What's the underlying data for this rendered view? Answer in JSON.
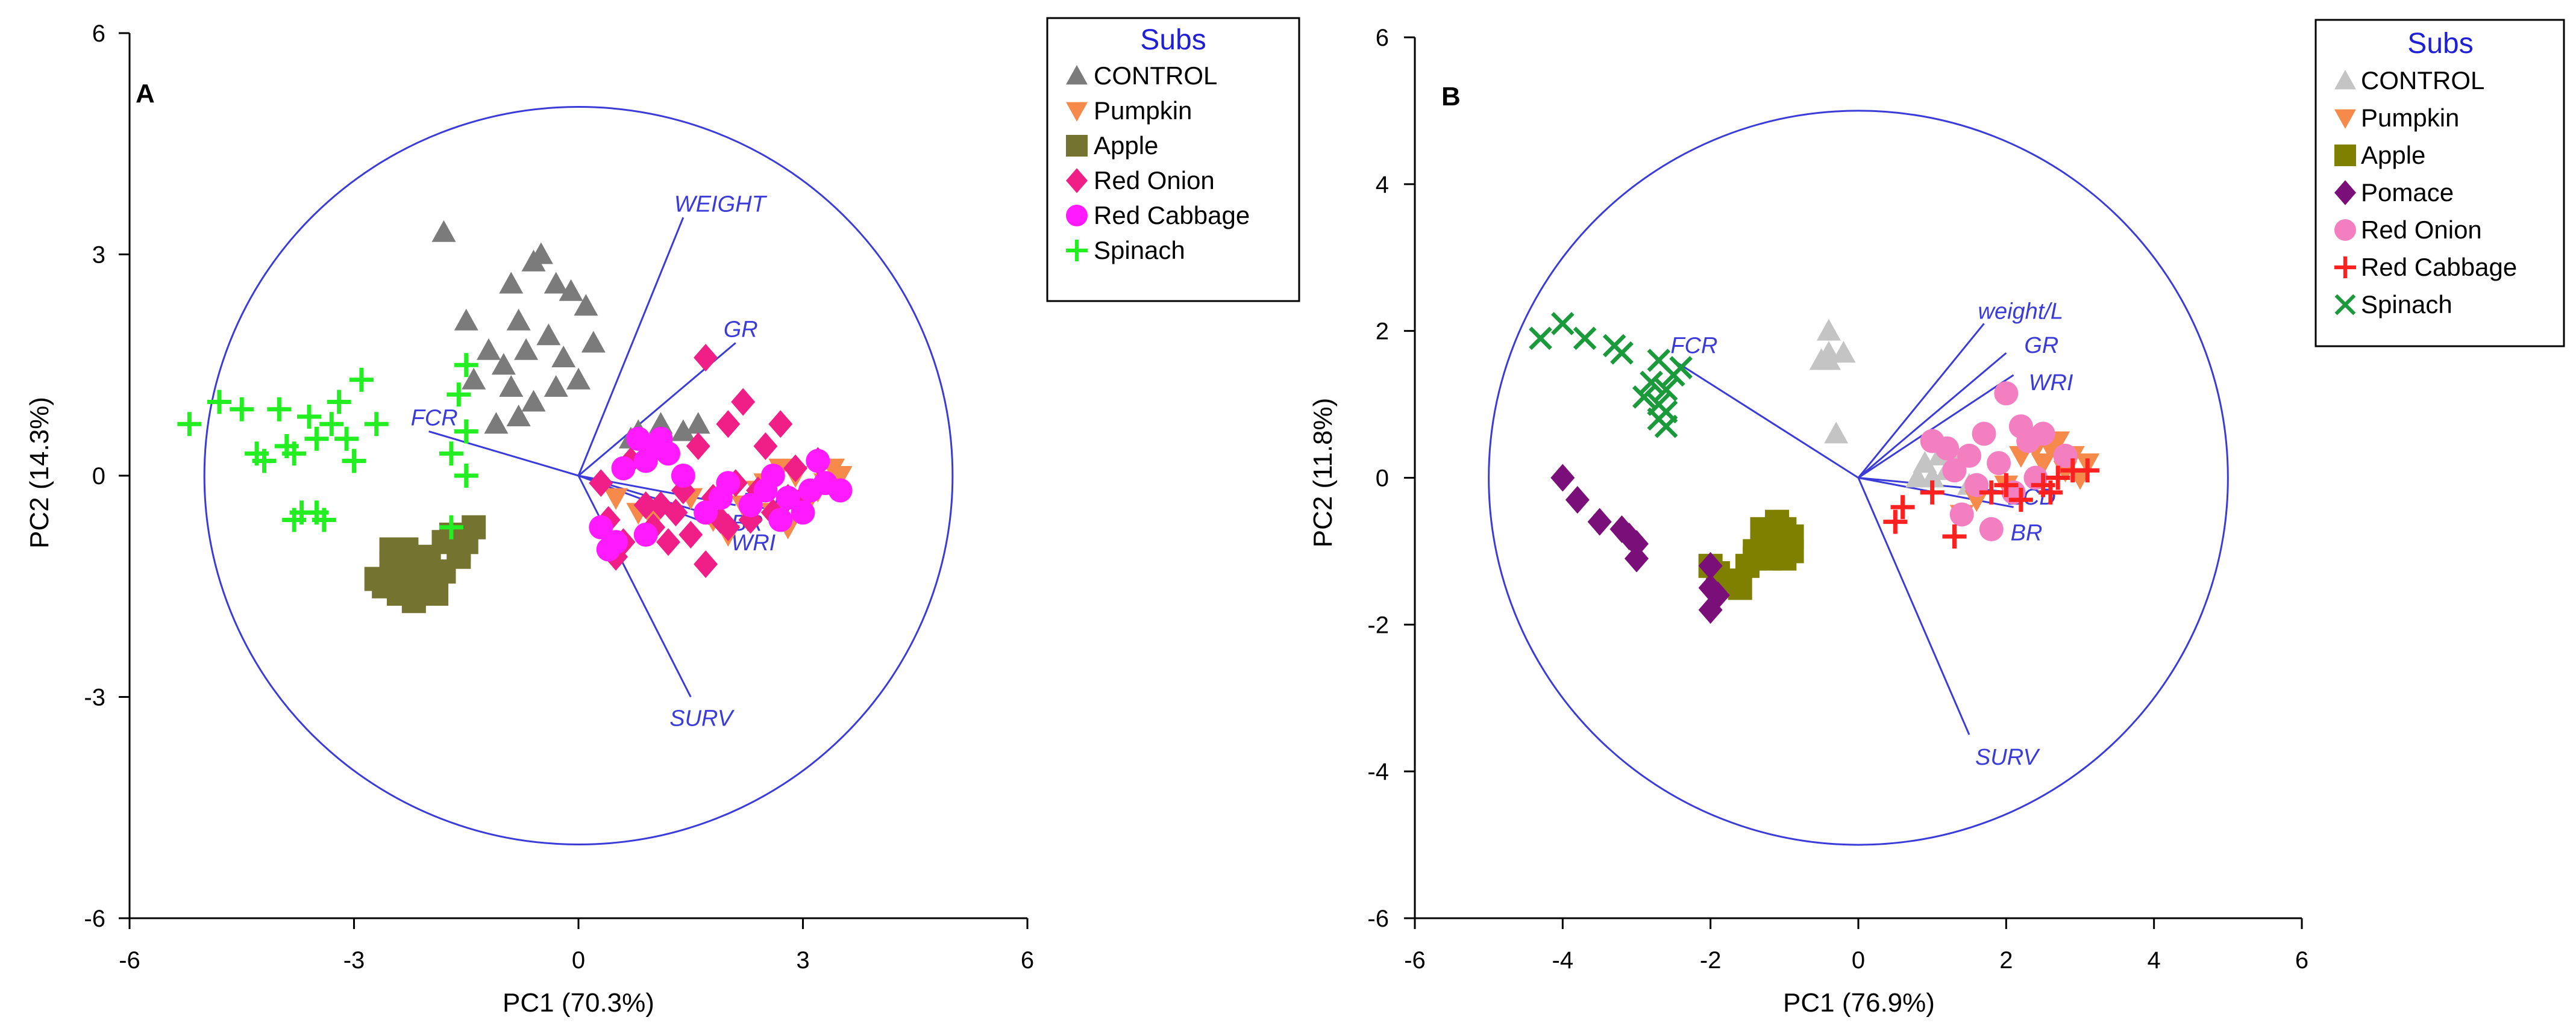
{
  "colors": {
    "axis": "#000000",
    "vector": "#3b3bd9",
    "circle": "#3b3bd9",
    "legend_title": "#1f1fd6"
  },
  "chart_data": [
    {
      "type": "scatter",
      "panel_label": "A",
      "title": "",
      "xlabel": "PC1 (70.3%)",
      "ylabel": "PC2 (14.3%)",
      "xlim": [
        -6,
        6
      ],
      "ylim": [
        -6,
        6
      ],
      "xticks": [
        -6,
        -3,
        0,
        3,
        6
      ],
      "yticks": [
        -6,
        -3,
        0,
        3,
        6
      ],
      "xtick_labels": [
        "-6",
        "-3",
        "0",
        "3",
        "6"
      ],
      "ytick_labels": [
        "-6",
        "-3",
        "0",
        "3",
        "6"
      ],
      "circle_radius": 5,
      "legend_title": "Subs",
      "series": [
        {
          "name": "CONTROL",
          "marker": "triangle-up",
          "color": "#7b7b7b",
          "x": [
            -1.8,
            -0.6,
            -0.5,
            -0.9,
            -0.3,
            -0.1,
            0.1,
            -1.5,
            -0.8,
            -0.4,
            0.2,
            -1.2,
            -0.7,
            -1.0,
            -0.2,
            0.0,
            -0.9,
            -1.4,
            -0.6,
            -0.3,
            -0.8,
            -1.1,
            1.1,
            1.4,
            0.7,
            1.6,
            0.8
          ],
          "y": [
            3.3,
            2.9,
            3.0,
            2.6,
            2.6,
            2.5,
            2.3,
            2.1,
            2.1,
            1.9,
            1.8,
            1.7,
            1.7,
            1.5,
            1.6,
            1.3,
            1.2,
            1.3,
            1.0,
            1.2,
            0.8,
            0.7,
            0.7,
            0.6,
            0.5,
            0.7,
            0.6
          ]
        },
        {
          "name": "Pumpkin",
          "marker": "triangle-down",
          "color": "#f58a4b",
          "x": [
            0.5,
            0.8,
            1.0,
            2.4,
            2.7,
            2.9,
            3.1,
            3.3,
            3.4,
            3.5,
            2.6,
            2.8,
            3.0,
            3.2,
            1.5,
            1.8,
            2.2,
            2.0,
            2.5
          ],
          "y": [
            -0.3,
            -0.5,
            -0.6,
            -0.2,
            0.1,
            0.0,
            -0.3,
            -0.1,
            0.1,
            0.0,
            -0.5,
            -0.7,
            -0.4,
            -0.2,
            -0.3,
            -0.6,
            -0.4,
            -0.8,
            -0.1
          ]
        },
        {
          "name": "Apple",
          "marker": "square",
          "color": "#747430",
          "x": [
            -2.4,
            -2.2,
            -2.0,
            -1.9,
            -1.6,
            -2.5,
            -2.3,
            -1.8,
            -2.1,
            -1.7,
            -2.6,
            -1.5,
            -2.0,
            -2.2,
            -1.9,
            -2.4,
            -2.7,
            -1.4,
            -1.6,
            -2.1,
            -2.3,
            -1.8,
            -2.5
          ],
          "y": [
            -1.6,
            -1.7,
            -1.5,
            -1.3,
            -1.1,
            -1.2,
            -1.0,
            -0.9,
            -1.4,
            -0.8,
            -1.5,
            -0.9,
            -1.1,
            -1.3,
            -1.6,
            -1.4,
            -1.4,
            -0.7,
            -1.0,
            -1.2,
            -1.5,
            -1.3,
            -1.0
          ]
        },
        {
          "name": "Red Onion",
          "marker": "diamond",
          "color": "#f01e87",
          "x": [
            1.7,
            2.2,
            2.7,
            2.0,
            1.6,
            2.5,
            3.2,
            2.9,
            0.7,
            0.3,
            0.4,
            1.1,
            1.4,
            1.8,
            2.3,
            0.6,
            1.0,
            1.3,
            2.8,
            2.1,
            0.9,
            1.9,
            1.5,
            2.4,
            0.5,
            1.2,
            2.6,
            3.0,
            1.7,
            2.0
          ],
          "y": [
            1.6,
            1.0,
            0.7,
            0.7,
            0.4,
            0.4,
            0.2,
            0.1,
            0.2,
            -0.1,
            -0.6,
            -0.4,
            -0.2,
            -0.3,
            -0.6,
            -0.9,
            -0.7,
            -0.5,
            -0.3,
            -0.1,
            -0.4,
            -0.6,
            -0.8,
            -0.2,
            -1.1,
            -0.9,
            -0.5,
            -0.3,
            -1.2,
            -0.7
          ]
        },
        {
          "name": "Red Cabbage",
          "marker": "circle",
          "color": "#ff1aff",
          "x": [
            0.8,
            1.0,
            1.2,
            0.9,
            1.1,
            0.6,
            1.4,
            2.0,
            2.5,
            2.8,
            3.1,
            3.3,
            3.5,
            0.3,
            0.5,
            0.9,
            1.7,
            2.3,
            2.7,
            3.0,
            0.4,
            1.9,
            2.6,
            3.2
          ],
          "y": [
            0.5,
            0.4,
            0.3,
            0.2,
            0.5,
            0.1,
            0.0,
            -0.1,
            -0.2,
            -0.3,
            -0.2,
            -0.1,
            -0.2,
            -0.7,
            -0.9,
            -0.8,
            -0.5,
            -0.4,
            -0.6,
            -0.5,
            -1.0,
            -0.3,
            0.0,
            0.2
          ]
        },
        {
          "name": "Spinach",
          "marker": "plus",
          "color": "#22ee22",
          "x": [
            -5.2,
            -4.8,
            -4.5,
            -4.2,
            -4.0,
            -3.8,
            -3.6,
            -3.5,
            -3.3,
            -3.1,
            -2.9,
            -2.7,
            -4.3,
            -3.9,
            -3.2,
            -3.0,
            -3.7,
            -3.4,
            -3.8,
            -3.5,
            -1.5,
            -1.6,
            -1.5,
            -1.7,
            -1.5,
            -1.7
          ],
          "y": [
            0.7,
            1.0,
            0.9,
            0.2,
            0.9,
            0.3,
            0.8,
            0.5,
            0.7,
            0.5,
            1.3,
            0.7,
            0.3,
            0.4,
            1.0,
            0.2,
            -0.5,
            -0.6,
            -0.6,
            -0.5,
            1.5,
            1.1,
            0.6,
            0.3,
            0.0,
            -0.7
          ]
        }
      ],
      "vectors": [
        {
          "name": "WEIGHT",
          "x": 1.4,
          "y": 3.5
        },
        {
          "name": "GR",
          "x": 2.1,
          "y": 1.8
        },
        {
          "name": "FCR",
          "x": -2.0,
          "y": 0.6
        },
        {
          "name": "ECD",
          "x": 2.1,
          "y": -0.4
        },
        {
          "name": "BR",
          "x": 2.0,
          "y": -0.6
        },
        {
          "name": "WRI",
          "x": 2.0,
          "y": -0.75
        },
        {
          "name": "SURV",
          "x": 1.5,
          "y": -3.0
        }
      ]
    },
    {
      "type": "scatter",
      "panel_label": "B",
      "title": "",
      "xlabel": "PC1 (76.9%)",
      "ylabel": "PC2 (11.8%)",
      "xlim": [
        -6,
        6
      ],
      "ylim": [
        -6,
        6
      ],
      "xticks": [
        -6,
        -4,
        -2,
        0,
        2,
        4,
        6
      ],
      "yticks": [
        -6,
        -4,
        -2,
        0,
        2,
        4,
        6
      ],
      "xtick_labels": [
        "-6",
        "-4",
        "-2",
        "0",
        "2",
        "4",
        "6"
      ],
      "ytick_labels": [
        "-6",
        "-4",
        "-2",
        "0",
        "2",
        "4",
        "6"
      ],
      "circle_radius": 5,
      "legend_title": "Subs",
      "series": [
        {
          "name": "CONTROL",
          "marker": "triangle-up",
          "color": "#c4c4c4",
          "x": [
            -0.4,
            -0.4,
            -0.5,
            -0.2,
            -0.4,
            -0.3,
            0.9,
            1.1,
            1.3,
            0.8,
            1.2,
            1.0,
            1.5
          ],
          "y": [
            2.0,
            1.7,
            1.6,
            1.7,
            1.6,
            0.6,
            0.2,
            0.3,
            0.2,
            0.0,
            0.1,
            0.0,
            -0.1
          ]
        },
        {
          "name": "Pumpkin",
          "marker": "triangle-down",
          "color": "#f58a4b",
          "x": [
            2.4,
            2.7,
            2.9,
            3.1,
            2.5,
            2.8,
            3.0,
            2.2,
            2.6,
            1.4,
            1.6,
            2.0
          ],
          "y": [
            0.4,
            0.5,
            0.3,
            0.2,
            0.2,
            0.1,
            0.0,
            0.3,
            0.4,
            -0.5,
            -0.3,
            -0.1
          ]
        },
        {
          "name": "Apple",
          "marker": "square",
          "color": "#808000",
          "x": [
            -1.0,
            -1.2,
            -1.1,
            -1.4,
            -1.3,
            -0.9,
            -1.0,
            -1.2,
            -1.5,
            -1.6,
            -1.8,
            -2.0,
            -1.9,
            -1.1,
            -0.9,
            -1.4,
            -1.3
          ],
          "y": [
            -0.7,
            -0.8,
            -0.9,
            -1.0,
            -0.9,
            -1.0,
            -1.1,
            -1.1,
            -1.2,
            -1.5,
            -1.4,
            -1.2,
            -1.3,
            -0.6,
            -0.8,
            -1.1,
            -0.7
          ]
        },
        {
          "name": "Pomace",
          "marker": "diamond",
          "color": "#7a0f7a",
          "x": [
            -4.0,
            -3.8,
            -3.5,
            -3.2,
            -3.1,
            -3.0,
            -3.0,
            -2.0,
            -2.0,
            -1.9,
            -2.0
          ],
          "y": [
            0.0,
            -0.3,
            -0.6,
            -0.7,
            -0.8,
            -0.9,
            -1.1,
            -1.2,
            -1.5,
            -1.6,
            -1.8
          ]
        },
        {
          "name": "Red Onion",
          "marker": "circle",
          "color": "#f47fc0",
          "x": [
            1.0,
            1.2,
            1.5,
            1.7,
            2.0,
            2.2,
            2.3,
            2.5,
            2.8,
            1.9,
            1.3,
            1.6,
            1.4,
            1.8,
            2.1,
            2.4
          ],
          "y": [
            0.5,
            0.4,
            0.3,
            0.6,
            1.15,
            0.7,
            0.5,
            0.6,
            0.3,
            0.2,
            0.1,
            -0.1,
            -0.5,
            -0.7,
            -0.2,
            0.0
          ]
        },
        {
          "name": "Red Cabbage",
          "marker": "plus",
          "color": "#ff2020",
          "x": [
            0.6,
            0.5,
            1.3,
            1.0,
            1.8,
            2.0,
            2.2,
            2.5,
            2.7,
            2.9,
            3.1,
            2.6
          ],
          "y": [
            -0.4,
            -0.6,
            -0.8,
            -0.2,
            -0.2,
            -0.1,
            -0.3,
            -0.1,
            0.0,
            0.1,
            0.1,
            -0.2
          ]
        },
        {
          "name": "Spinach",
          "marker": "x",
          "color": "#1a9a3a",
          "x": [
            -4.3,
            -4.0,
            -3.7,
            -3.3,
            -3.2,
            -2.9,
            -2.7,
            -2.8,
            -2.6,
            -2.7,
            -2.5,
            -2.6,
            -2.4,
            -2.7,
            -2.6
          ],
          "y": [
            1.9,
            2.1,
            1.9,
            1.8,
            1.7,
            1.1,
            1.0,
            1.3,
            1.2,
            0.8,
            1.4,
            0.7,
            1.5,
            1.6,
            0.9
          ]
        }
      ],
      "vectors": [
        {
          "name": "weight/L",
          "x": 1.7,
          "y": 2.1
        },
        {
          "name": "GR",
          "x": 2.0,
          "y": 1.7
        },
        {
          "name": "WRI",
          "x": 2.1,
          "y": 1.4
        },
        {
          "name": "FCR",
          "x": -2.5,
          "y": 1.6
        },
        {
          "name": "ECD",
          "x": 2.1,
          "y": -0.2
        },
        {
          "name": "BR",
          "x": 2.1,
          "y": -0.4
        },
        {
          "name": "SURV",
          "x": 1.5,
          "y": -3.5
        }
      ]
    }
  ]
}
